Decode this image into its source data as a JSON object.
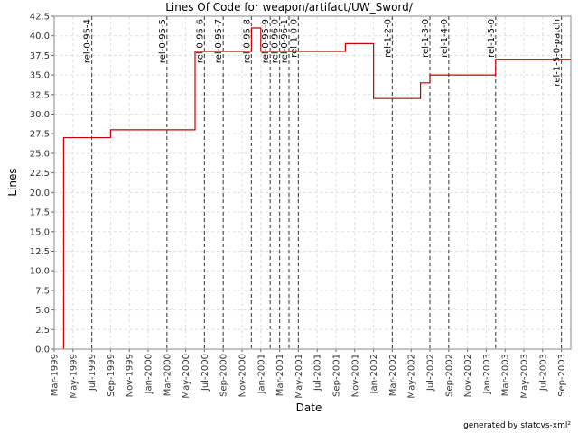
{
  "chart_data": {
    "type": "step",
    "title": "Lines Of Code for weapon/artifact/UW_Sword/",
    "x_label": "Date",
    "y_label": "Lines",
    "footer": "generated by statcvs-xml²",
    "xlim": [
      "1999-03",
      "2003-10"
    ],
    "xticks": [
      {
        "value": "1999-03",
        "label": "Mar-1999"
      },
      {
        "value": "1999-05",
        "label": "May-1999"
      },
      {
        "value": "1999-07",
        "label": "Jul-1999"
      },
      {
        "value": "1999-09",
        "label": "Sep-1999"
      },
      {
        "value": "1999-11",
        "label": "Nov-1999"
      },
      {
        "value": "2000-01",
        "label": "Jan-2000"
      },
      {
        "value": "2000-03",
        "label": "Mar-2000"
      },
      {
        "value": "2000-05",
        "label": "May-2000"
      },
      {
        "value": "2000-07",
        "label": "Jul-2000"
      },
      {
        "value": "2000-09",
        "label": "Sep-2000"
      },
      {
        "value": "2000-11",
        "label": "Nov-2000"
      },
      {
        "value": "2001-01",
        "label": "Jan-2001"
      },
      {
        "value": "2001-03",
        "label": "Mar-2001"
      },
      {
        "value": "2001-05",
        "label": "May-2001"
      },
      {
        "value": "2001-07",
        "label": "Jul-2001"
      },
      {
        "value": "2001-09",
        "label": "Sep-2001"
      },
      {
        "value": "2001-11",
        "label": "Nov-2001"
      },
      {
        "value": "2002-01",
        "label": "Jan-2002"
      },
      {
        "value": "2002-03",
        "label": "Mar-2002"
      },
      {
        "value": "2002-05",
        "label": "May-2002"
      },
      {
        "value": "2002-07",
        "label": "Jul-2002"
      },
      {
        "value": "2002-09",
        "label": "Sep-2002"
      },
      {
        "value": "2002-11",
        "label": "Nov-2002"
      },
      {
        "value": "2003-01",
        "label": "Jan-2003"
      },
      {
        "value": "2003-03",
        "label": "Mar-2003"
      },
      {
        "value": "2003-05",
        "label": "May-2003"
      },
      {
        "value": "2003-07",
        "label": "Jul-2003"
      },
      {
        "value": "2003-09",
        "label": "Sep-2003"
      }
    ],
    "ylim": [
      0,
      42.5
    ],
    "yticks": [
      {
        "value": 0,
        "label": "0.0"
      },
      {
        "value": 2.5,
        "label": "2.5"
      },
      {
        "value": 5,
        "label": "5.0"
      },
      {
        "value": 7.5,
        "label": "7.5"
      },
      {
        "value": 10,
        "label": "10.0"
      },
      {
        "value": 12.5,
        "label": "12.5"
      },
      {
        "value": 15,
        "label": "15.0"
      },
      {
        "value": 17.5,
        "label": "17.5"
      },
      {
        "value": 20,
        "label": "20.0"
      },
      {
        "value": 22.5,
        "label": "22.5"
      },
      {
        "value": 25,
        "label": "25.0"
      },
      {
        "value": 27.5,
        "label": "27.5"
      },
      {
        "value": 30,
        "label": "30.0"
      },
      {
        "value": 32.5,
        "label": "32.5"
      },
      {
        "value": 35,
        "label": "35.0"
      },
      {
        "value": 37.5,
        "label": "37.5"
      },
      {
        "value": 40,
        "label": "40.0"
      },
      {
        "value": 42.5,
        "label": "42.5"
      }
    ],
    "grid": true,
    "series": [
      {
        "color": "#cc0000",
        "x": [
          "1999-04",
          "1999-04",
          "1999-09",
          "2000-06",
          "2000-12",
          "2001-01",
          "2001-10",
          "2002-01",
          "2002-06",
          "2002-07",
          "2003-02",
          "2003-10"
        ],
        "values": [
          0,
          27,
          28,
          38,
          41,
          38,
          39,
          32,
          34,
          35,
          37,
          37
        ]
      }
    ],
    "markers": [
      {
        "label": "rel-0-95-4",
        "x": "1999-07"
      },
      {
        "label": "rel-0-95-5",
        "x": "2000-03"
      },
      {
        "label": "rel-0-95-6",
        "x": "2000-07"
      },
      {
        "label": "rel-0-95-7",
        "x": "2000-09"
      },
      {
        "label": "rel-0-95-8",
        "x": "2000-12"
      },
      {
        "label": "rel-0-95-9",
        "x": "2001-02"
      },
      {
        "label": "rel-0-96-0",
        "x": "2001-03"
      },
      {
        "label": "rel-0-96-1",
        "x": "2001-04"
      },
      {
        "label": "rel-1-0-0",
        "x": "2001-05"
      },
      {
        "label": "rel-1-2-0",
        "x": "2002-03"
      },
      {
        "label": "rel-1-3-0",
        "x": "2002-07"
      },
      {
        "label": "rel-1-4-0",
        "x": "2002-09"
      },
      {
        "label": "rel-1-5-0",
        "x": "2003-02"
      },
      {
        "label": "rel-1-5-0-patch",
        "x": "2003-09"
      }
    ]
  }
}
